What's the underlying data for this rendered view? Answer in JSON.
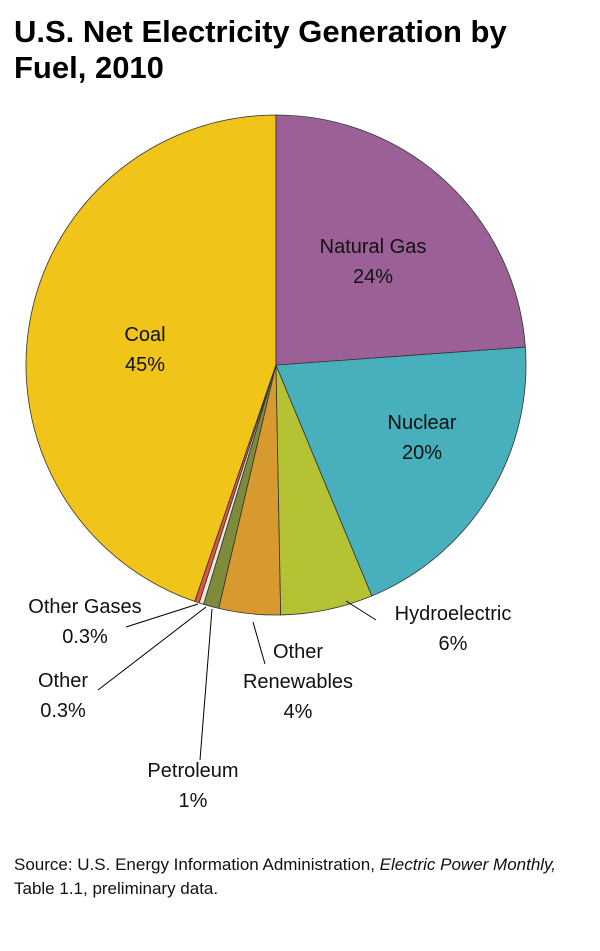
{
  "chart_data": {
    "type": "pie",
    "title": "U.S. Net Electricity Generation by Fuel, 2010",
    "categories": [
      "Natural Gas",
      "Nuclear",
      "Hydroelectric",
      "Other Renewables",
      "Petroleum",
      "Other",
      "Other Gases",
      "Coal"
    ],
    "values": [
      24,
      20,
      6,
      4,
      1,
      0.3,
      0.3,
      45
    ],
    "value_labels": [
      "24%",
      "20%",
      "6%",
      "4%",
      "1%",
      "0.3%",
      "0.3%",
      "45%"
    ],
    "colors": [
      "#9b6196",
      "#47b0bc",
      "#b5c234",
      "#d89a2e",
      "#7d8b3a",
      "#ece6d8",
      "#e0543c",
      "#f0c419"
    ],
    "source": [
      "Source: U.S. Energy Information Administration, ",
      "Electric Power Monthly,",
      " Table 1.1, preliminary data."
    ]
  }
}
